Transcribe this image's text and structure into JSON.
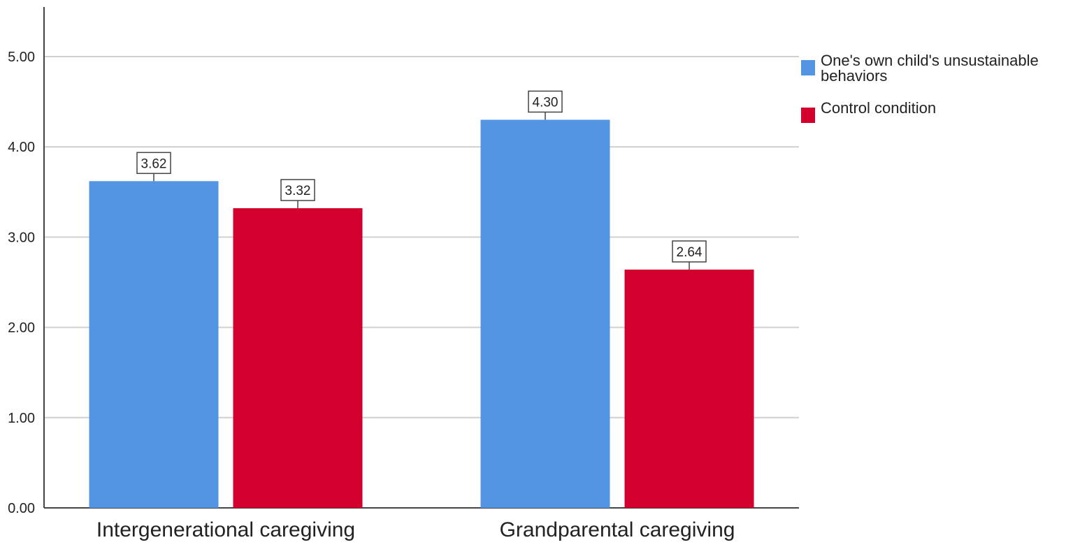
{
  "chart_data": {
    "type": "bar",
    "categories": [
      "Intergenerational caregiving",
      "Grandparental caregiving"
    ],
    "series": [
      {
        "name": "One's own child's unsustainable behaviors",
        "name_lines": [
          "One's own child's unsustainable",
          "behaviors"
        ],
        "color": "#5495e3",
        "values": [
          3.62,
          4.3
        ],
        "labels": [
          "3.62",
          "4.30"
        ]
      },
      {
        "name": "Control condition",
        "name_lines": [
          "Control condition"
        ],
        "color": "#d3002e",
        "values": [
          3.32,
          2.64
        ],
        "labels": [
          "3.32",
          "2.64"
        ]
      }
    ],
    "ylim": [
      0,
      5.5
    ],
    "yticks": [
      0,
      1,
      2,
      3,
      4,
      5
    ],
    "ytick_labels": [
      "0.00",
      "1.00",
      "2.00",
      "3.00",
      "4.00",
      "5.00"
    ],
    "title": "",
    "xlabel": "",
    "ylabel": "",
    "grid": true,
    "legend": "top-right"
  }
}
